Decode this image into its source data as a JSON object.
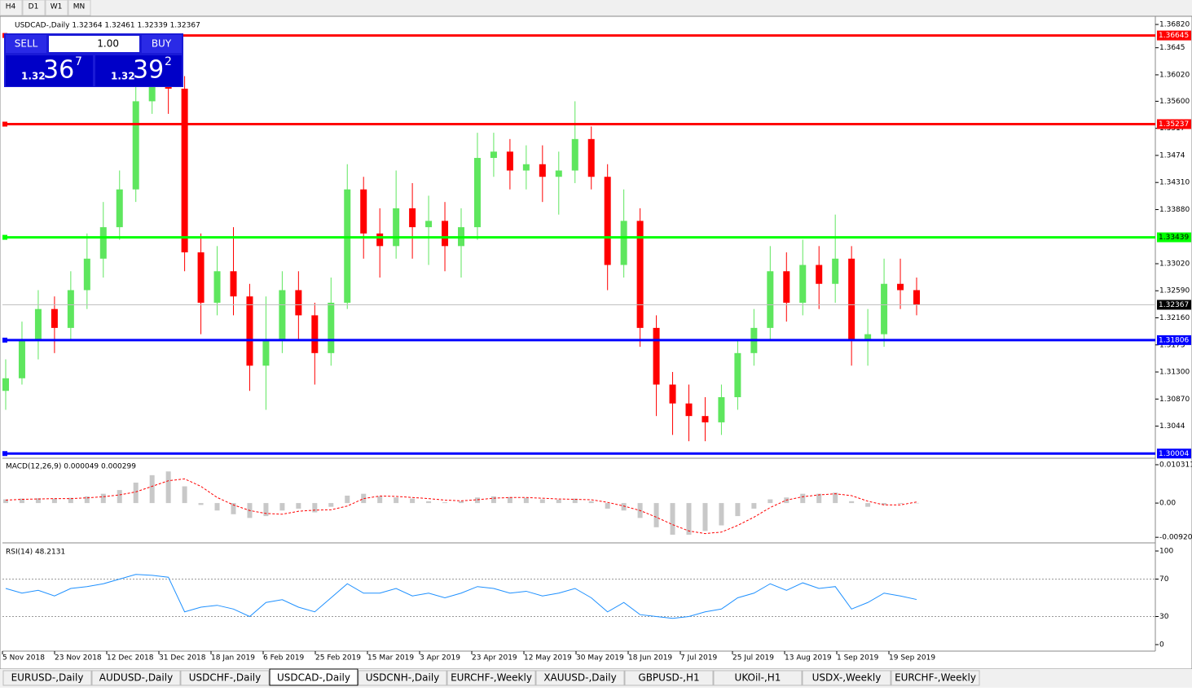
{
  "toolbar": [
    "H4",
    "D1",
    "W1",
    "MN"
  ],
  "chart_data": {
    "type": "candlestick",
    "title": "USDCAD-,Daily 1.32364 1.32461 1.32339 1.32367",
    "x_tick_labels": [
      "5 Nov 2018",
      "23 Nov 2018",
      "12 Dec 2018",
      "31 Dec 2018",
      "18 Jan 2019",
      "6 Feb 2019",
      "25 Feb 2019",
      "15 Mar 2019",
      "3 Apr 2019",
      "23 Apr 2019",
      "12 May 2019",
      "30 May 2019",
      "18 Jun 2019",
      "7 Jul 2019",
      "25 Jul 2019",
      "13 Aug 2019",
      "1 Sep 2019",
      "19 Sep 2019"
    ],
    "open": [
      1.31,
      1.312,
      1.318,
      1.323,
      1.32,
      1.326,
      1.331,
      1.336,
      1.342,
      1.356,
      1.361,
      1.358,
      1.332,
      1.324,
      1.329,
      1.325,
      1.314,
      1.318,
      1.326,
      1.322,
      1.316,
      1.324,
      1.342,
      1.335,
      1.333,
      1.339,
      1.336,
      1.337,
      1.333,
      1.336,
      1.347,
      1.348,
      1.345,
      1.346,
      1.344,
      1.345,
      1.35,
      1.344,
      1.33,
      1.337,
      1.32,
      1.311,
      1.308,
      1.306,
      1.305,
      1.309,
      1.316,
      1.32,
      1.329,
      1.324,
      1.33,
      1.327,
      1.331,
      1.318,
      1.319,
      1.327,
      1.326
    ],
    "high": [
      1.315,
      1.321,
      1.326,
      1.325,
      1.329,
      1.335,
      1.34,
      1.345,
      1.36,
      1.365,
      1.364,
      1.36,
      1.335,
      1.333,
      1.336,
      1.327,
      1.325,
      1.329,
      1.329,
      1.324,
      1.328,
      1.346,
      1.344,
      1.339,
      1.345,
      1.343,
      1.341,
      1.34,
      1.339,
      1.351,
      1.351,
      1.35,
      1.349,
      1.349,
      1.348,
      1.356,
      1.352,
      1.346,
      1.342,
      1.339,
      1.322,
      1.313,
      1.311,
      1.309,
      1.311,
      1.318,
      1.323,
      1.333,
      1.332,
      1.334,
      1.333,
      1.338,
      1.333,
      1.323,
      1.331,
      1.331,
      1.328
    ],
    "low": [
      1.307,
      1.311,
      1.315,
      1.316,
      1.318,
      1.323,
      1.328,
      1.334,
      1.34,
      1.354,
      1.354,
      1.329,
      1.319,
      1.322,
      1.322,
      1.31,
      1.307,
      1.316,
      1.318,
      1.311,
      1.314,
      1.323,
      1.331,
      1.328,
      1.331,
      1.331,
      1.33,
      1.329,
      1.328,
      1.334,
      1.344,
      1.342,
      1.342,
      1.34,
      1.338,
      1.343,
      1.342,
      1.326,
      1.328,
      1.317,
      1.306,
      1.303,
      1.302,
      1.302,
      1.303,
      1.307,
      1.314,
      1.318,
      1.321,
      1.322,
      1.323,
      1.324,
      1.314,
      1.314,
      1.317,
      1.323,
      1.322
    ],
    "close": [
      1.312,
      1.318,
      1.323,
      1.32,
      1.326,
      1.331,
      1.336,
      1.342,
      1.356,
      1.361,
      1.358,
      1.332,
      1.324,
      1.329,
      1.325,
      1.314,
      1.318,
      1.326,
      1.322,
      1.316,
      1.324,
      1.342,
      1.335,
      1.333,
      1.339,
      1.336,
      1.337,
      1.333,
      1.336,
      1.347,
      1.348,
      1.345,
      1.346,
      1.344,
      1.345,
      1.35,
      1.344,
      1.33,
      1.337,
      1.32,
      1.311,
      1.308,
      1.306,
      1.305,
      1.309,
      1.316,
      1.32,
      1.329,
      1.324,
      1.33,
      1.327,
      1.331,
      1.318,
      1.319,
      1.327,
      1.326,
      1.3237
    ],
    "up_color": "#5ee65e",
    "down_color": "#ff0000",
    "ylim": [
      1.2993,
      1.3695
    ],
    "yticks": [
      {
        "value": 1.3682,
        "label": "1.36820"
      },
      1.3645,
      {
        "value": 1.3602,
        "label": "1.36020"
      },
      {
        "value": 1.356,
        "label": "1.35600"
      },
      1.3517,
      1.3474,
      {
        "value": 1.3431,
        "label": "1.34310"
      },
      {
        "value": 1.3388,
        "label": "1.33880"
      },
      {
        "value": 1.3302,
        "label": "1.33020"
      },
      {
        "value": 1.3259,
        "label": "1.32590"
      },
      {
        "value": 1.3216,
        "label": "1.32160"
      },
      1.3173,
      {
        "value": 1.313,
        "label": "1.31300"
      },
      {
        "value": 1.3087,
        "label": "1.30870"
      },
      1.3044
    ],
    "levels": [
      {
        "value": 1.36645,
        "color": "#ff0000"
      },
      {
        "value": 1.35237,
        "color": "#ff0000"
      },
      {
        "value": 1.33439,
        "color": "#00ff00"
      },
      {
        "value": 1.31806,
        "color": "#0000ff"
      },
      {
        "value": 1.30004,
        "color": "#0000ff"
      }
    ],
    "current_price": 1.32367,
    "macd": {
      "title": "MACD(12,26,9) 0.000049 0.000299",
      "values": [
        0.001,
        0.0012,
        0.0013,
        0.0012,
        0.0014,
        0.0018,
        0.0025,
        0.0035,
        0.0055,
        0.0075,
        0.0085,
        0.0045,
        -0.0005,
        -0.002,
        -0.003,
        -0.004,
        -0.0035,
        -0.002,
        -0.0015,
        -0.0025,
        -0.001,
        0.002,
        0.0025,
        0.0018,
        0.0015,
        0.0012,
        0.0005,
        0.0002,
        0.0005,
        0.0015,
        0.0018,
        0.0016,
        0.0014,
        0.001,
        0.0009,
        0.0012,
        0.0005,
        -0.0015,
        -0.002,
        -0.004,
        -0.0065,
        -0.0085,
        -0.0085,
        -0.0075,
        -0.006,
        -0.0035,
        -0.0015,
        0.001,
        0.0015,
        0.0025,
        0.0025,
        0.0028,
        0.0005,
        -0.001,
        -0.0005,
        -0.0002,
        5e-05
      ],
      "signal": [
        0.0008,
        0.001,
        0.0011,
        0.0012,
        0.0012,
        0.0014,
        0.0017,
        0.0022,
        0.003,
        0.0045,
        0.006,
        0.0065,
        0.0045,
        0.0015,
        -0.0005,
        -0.002,
        -0.0028,
        -0.003,
        -0.0022,
        -0.0019,
        -0.0018,
        -0.0008,
        0.0012,
        0.0019,
        0.0018,
        0.0015,
        0.0012,
        0.0008,
        0.0006,
        0.0009,
        0.0013,
        0.0015,
        0.0015,
        0.0013,
        0.0011,
        0.001,
        0.0009,
        0.0002,
        -0.0008,
        -0.002,
        -0.0038,
        -0.0058,
        -0.0075,
        -0.0082,
        -0.0078,
        -0.006,
        -0.0038,
        -0.0012,
        0.0008,
        0.0017,
        0.0022,
        0.0025,
        0.002,
        0.0005,
        -0.0005,
        -0.0005,
        0.0003
      ],
      "ylim": [
        -0.0107,
        0.0114
      ],
      "yticks": [
        0.010311,
        {
          "value": 0,
          "label": "0.00"
        },
        -0.009203
      ]
    },
    "rsi": {
      "title": "RSI(14) 48.2131",
      "values": [
        60,
        55,
        58,
        52,
        60,
        62,
        65,
        70,
        75,
        74,
        72,
        35,
        40,
        42,
        38,
        30,
        45,
        48,
        40,
        35,
        50,
        65,
        55,
        55,
        60,
        52,
        55,
        50,
        55,
        62,
        60,
        55,
        57,
        52,
        55,
        60,
        50,
        35,
        45,
        32,
        30,
        28,
        30,
        35,
        38,
        50,
        55,
        65,
        58,
        66,
        60,
        62,
        38,
        45,
        55,
        52,
        48.2131
      ],
      "ylim": [
        0,
        100
      ],
      "yticks": [
        100,
        70,
        30,
        0
      ],
      "levels": [
        70,
        30
      ]
    }
  },
  "trade_panel": {
    "sell": "SELL",
    "lots": "1.00",
    "buy": "BUY",
    "bid_big": "1.32",
    "bid_main": "36",
    "bid_sup": "7",
    "ask_big": "1.32",
    "ask_main": "39",
    "ask_sup": "2"
  },
  "tabs": [
    "EURUSD-,Daily",
    "AUDUSD-,Daily",
    "USDCHF-,Daily",
    "USDCAD-,Daily",
    "USDCNH-,Daily",
    "EURCHF-,Weekly",
    "XAUUSD-,Daily",
    "GBPUSD-,H1",
    "UKOil-,H1",
    "USDX-,Weekly",
    "EURCHF-,Weekly"
  ],
  "active_tab": 3
}
